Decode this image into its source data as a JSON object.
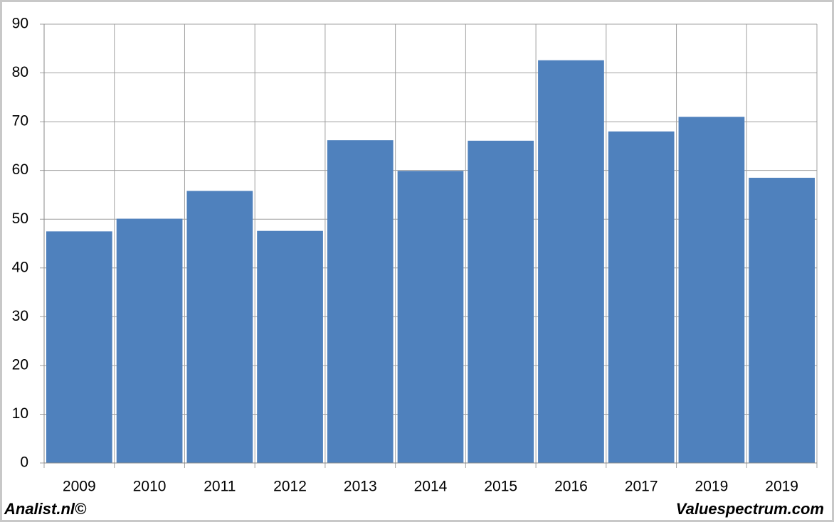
{
  "chart_data": {
    "type": "bar",
    "categories": [
      "2009",
      "2010",
      "2011",
      "2012",
      "2013",
      "2014",
      "2015",
      "2016",
      "2017",
      "2019",
      "2019"
    ],
    "values": [
      47.5,
      50.1,
      55.8,
      47.6,
      66.2,
      59.9,
      66.1,
      82.6,
      68.0,
      71.0,
      58.5
    ],
    "color": "#4f81bd",
    "ylim": [
      0,
      90
    ],
    "yticks": [
      0,
      10,
      20,
      30,
      40,
      50,
      60,
      70,
      80,
      90
    ],
    "grid": true,
    "annotations": [
      "Analist.nl©",
      "Valuespectrum.com"
    ]
  }
}
